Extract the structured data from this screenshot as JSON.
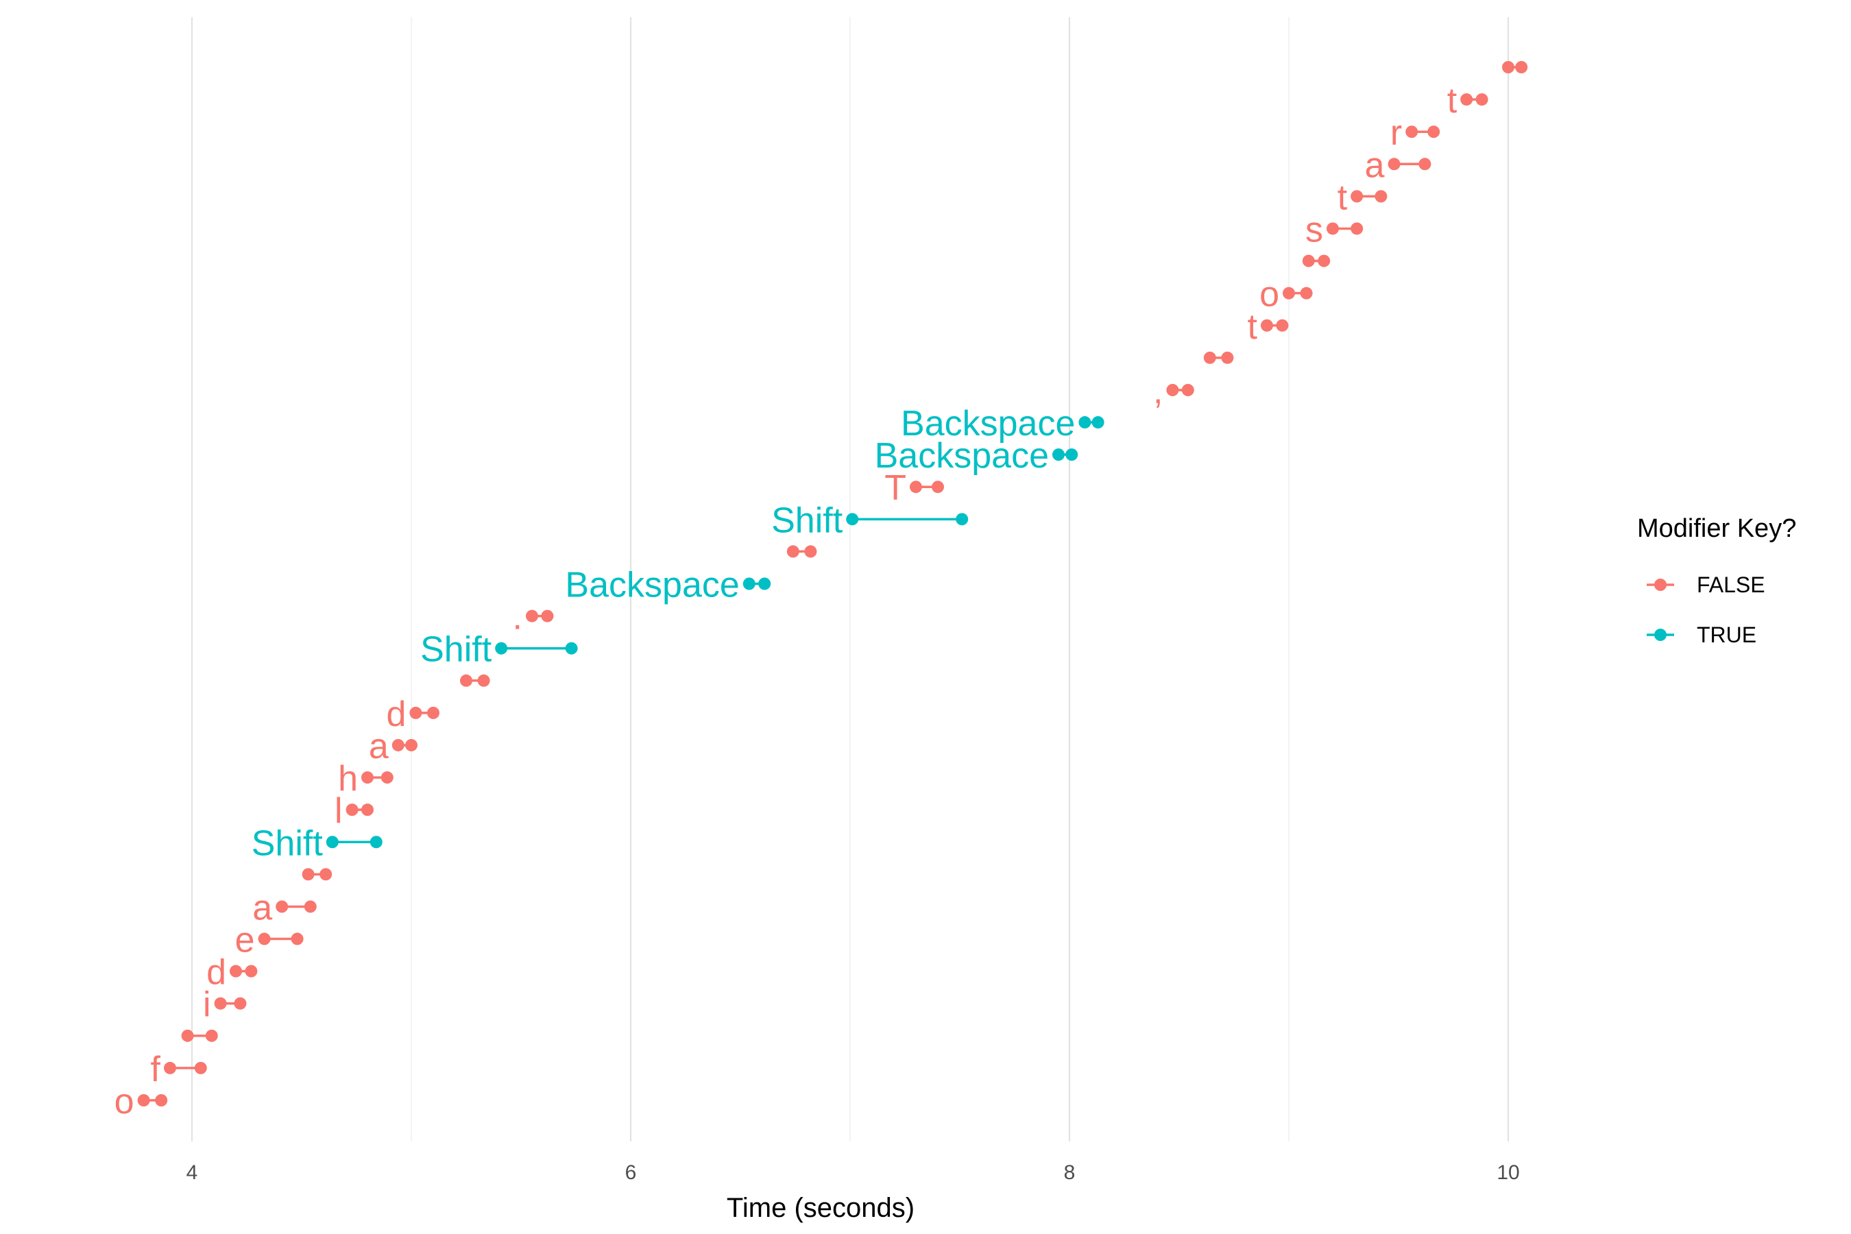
{
  "chart_data": {
    "type": "dumbbell",
    "xlabel": "Time (seconds)",
    "xlim": [
      3.6,
      10.75
    ],
    "x_ticks": [
      "4",
      "6",
      "8",
      "10"
    ],
    "x_tick_values": [
      4,
      6,
      8,
      10
    ],
    "x_minor_grid": [
      5,
      7,
      9
    ],
    "grid": true,
    "legend": {
      "title": "Modifier Key?",
      "position": "right",
      "entries": [
        {
          "label": "FALSE",
          "color": "#F8766D"
        },
        {
          "label": "TRUE",
          "color": "#00BFC4"
        }
      ]
    },
    "colors": {
      "FALSE": "#F8766D",
      "TRUE": "#00BFC4"
    },
    "keys": [
      {
        "key": "o",
        "start": 3.78,
        "end": 3.86,
        "modifier": false
      },
      {
        "key": "f",
        "start": 3.9,
        "end": 4.04,
        "modifier": false
      },
      {
        "key": "",
        "start": 3.98,
        "end": 4.09,
        "modifier": false
      },
      {
        "key": "i",
        "start": 4.13,
        "end": 4.22,
        "modifier": false
      },
      {
        "key": "d",
        "start": 4.2,
        "end": 4.27,
        "modifier": false
      },
      {
        "key": "e",
        "start": 4.33,
        "end": 4.48,
        "modifier": false
      },
      {
        "key": "a",
        "start": 4.41,
        "end": 4.54,
        "modifier": false
      },
      {
        "key": "",
        "start": 4.53,
        "end": 4.61,
        "modifier": false
      },
      {
        "key": "Shift",
        "start": 4.64,
        "end": 4.84,
        "modifier": true
      },
      {
        "key": "l",
        "start": 4.73,
        "end": 4.8,
        "modifier": false
      },
      {
        "key": "h",
        "start": 4.8,
        "end": 4.89,
        "modifier": false
      },
      {
        "key": "a",
        "start": 4.94,
        "end": 5.0,
        "modifier": false
      },
      {
        "key": "d",
        "start": 5.02,
        "end": 5.1,
        "modifier": false
      },
      {
        "key": "",
        "start": 5.25,
        "end": 5.33,
        "modifier": false
      },
      {
        "key": "Shift",
        "start": 5.41,
        "end": 5.73,
        "modifier": true
      },
      {
        "key": ".",
        "start": 5.55,
        "end": 5.62,
        "modifier": false
      },
      {
        "key": "Backspace",
        "start": 6.54,
        "end": 6.61,
        "modifier": true
      },
      {
        "key": "",
        "start": 6.74,
        "end": 6.82,
        "modifier": false
      },
      {
        "key": "Shift",
        "start": 7.01,
        "end": 7.51,
        "modifier": true
      },
      {
        "key": "T",
        "start": 7.3,
        "end": 7.4,
        "modifier": false
      },
      {
        "key": "Backspace",
        "start": 7.95,
        "end": 8.01,
        "modifier": true
      },
      {
        "key": "Backspace",
        "start": 8.07,
        "end": 8.13,
        "modifier": true
      },
      {
        "key": ",",
        "start": 8.47,
        "end": 8.54,
        "modifier": false
      },
      {
        "key": "",
        "start": 8.64,
        "end": 8.72,
        "modifier": false
      },
      {
        "key": "t",
        "start": 8.9,
        "end": 8.97,
        "modifier": false
      },
      {
        "key": "o",
        "start": 9.0,
        "end": 9.08,
        "modifier": false
      },
      {
        "key": "",
        "start": 9.09,
        "end": 9.16,
        "modifier": false
      },
      {
        "key": "s",
        "start": 9.2,
        "end": 9.31,
        "modifier": false
      },
      {
        "key": "t",
        "start": 9.31,
        "end": 9.42,
        "modifier": false
      },
      {
        "key": "a",
        "start": 9.48,
        "end": 9.62,
        "modifier": false
      },
      {
        "key": "r",
        "start": 9.56,
        "end": 9.66,
        "modifier": false
      },
      {
        "key": "t",
        "start": 9.81,
        "end": 9.88,
        "modifier": false
      },
      {
        "key": "",
        "start": 10.0,
        "end": 10.06,
        "modifier": false
      }
    ]
  }
}
